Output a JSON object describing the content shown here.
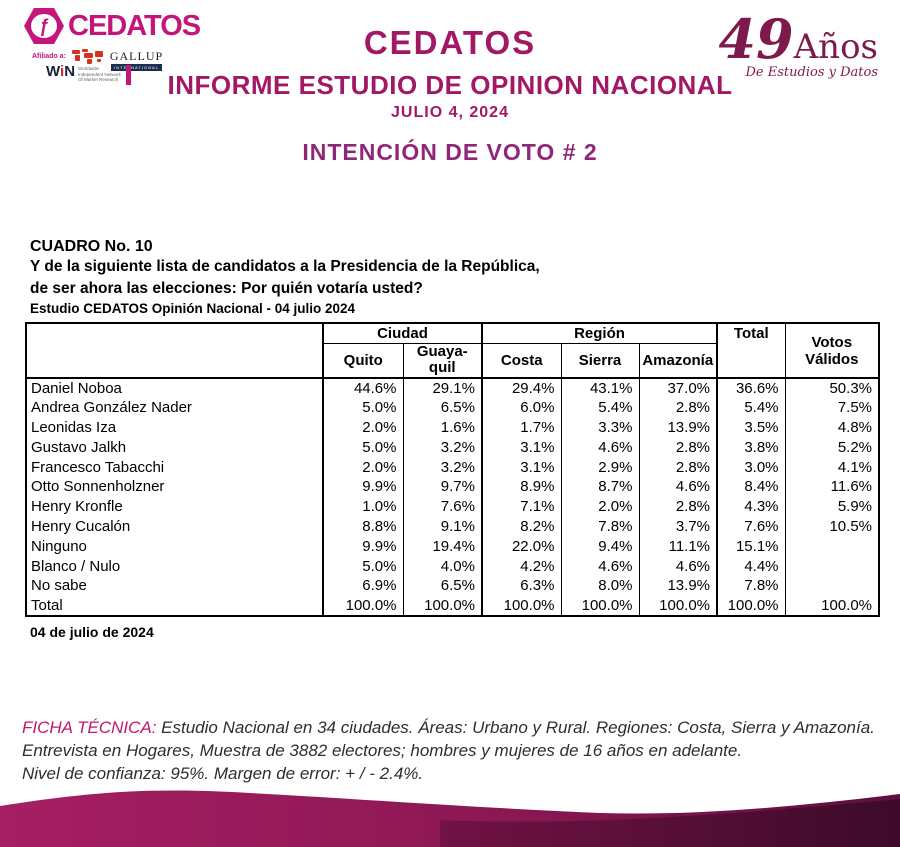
{
  "colors": {
    "brand_pink": "#C4157B",
    "heading_magenta": "#A21865",
    "heading_purple": "#8E2778",
    "maroon": "#7D1A4B",
    "ficha_pink": "#C4156B",
    "wave_left": "#A61E63",
    "wave_mid": "#8C1853",
    "wave_right": "#5C103E",
    "wave_dark_left": "#6E1243",
    "wave_dark_right": "#3A0A27"
  },
  "header": {
    "logo": {
      "brand": "CEDATOS",
      "glyph": "ƒ",
      "affiliation_label": "Afiliado a:",
      "gallup_label": "GALLUP",
      "gallup_sub": "INTERNATIONAL",
      "win_label_w": "W",
      "win_label_i": "i",
      "win_label_n": "N",
      "win_sub": "Worldwide\nIndependent Network\nOf Market Research"
    },
    "title": "CEDATOS",
    "subtitle": "INFORME ESTUDIO DE OPINION NACIONAL",
    "date": "JULIO 4, 2024",
    "section_title": "INTENCIÓN DE VOTO # 2",
    "anniversary": {
      "number": "49",
      "word": "Años",
      "tagline": "De Estudios y Datos"
    }
  },
  "cuadro": {
    "label": "CUADRO No. 10",
    "question_line1": "Y de la siguiente lista de candidatos a la Presidencia de la República,",
    "question_line2": "de ser ahora las elecciones: Por quién votaría usted?",
    "source": "Estudio CEDATOS Opinión Nacional - 04 julio 2024",
    "footer_date": "04 de julio de 2024"
  },
  "table": {
    "group_ciudad": "Ciudad",
    "group_region": "Región",
    "col_total": "Total",
    "col_votos": "Votos Válidos",
    "subcols": [
      "Quito",
      "Guaya-\nquil",
      "Costa",
      "Sierra",
      "Amazonía"
    ],
    "rows": [
      {
        "name": "Daniel Noboa",
        "quito": "44.6%",
        "guayaquil": "29.1%",
        "costa": "29.4%",
        "sierra": "43.1%",
        "amazonia": "37.0%",
        "total": "36.6%",
        "votos": "50.3%"
      },
      {
        "name": "Andrea González Nader",
        "quito": "5.0%",
        "guayaquil": "6.5%",
        "costa": "6.0%",
        "sierra": "5.4%",
        "amazonia": "2.8%",
        "total": "5.4%",
        "votos": "7.5%"
      },
      {
        "name": "Leonidas Iza",
        "quito": "2.0%",
        "guayaquil": "1.6%",
        "costa": "1.7%",
        "sierra": "3.3%",
        "amazonia": "13.9%",
        "total": "3.5%",
        "votos": "4.8%"
      },
      {
        "name": "Gustavo Jalkh",
        "quito": "5.0%",
        "guayaquil": "3.2%",
        "costa": "3.1%",
        "sierra": "4.6%",
        "amazonia": "2.8%",
        "total": "3.8%",
        "votos": "5.2%"
      },
      {
        "name": "Francesco Tabacchi",
        "quito": "2.0%",
        "guayaquil": "3.2%",
        "costa": "3.1%",
        "sierra": "2.9%",
        "amazonia": "2.8%",
        "total": "3.0%",
        "votos": "4.1%"
      },
      {
        "name": "Otto Sonnenholzner",
        "quito": "9.9%",
        "guayaquil": "9.7%",
        "costa": "8.9%",
        "sierra": "8.7%",
        "amazonia": "4.6%",
        "total": "8.4%",
        "votos": "11.6%"
      },
      {
        "name": "Henry Kronfle",
        "quito": "1.0%",
        "guayaquil": "7.6%",
        "costa": "7.1%",
        "sierra": "2.0%",
        "amazonia": "2.8%",
        "total": "4.3%",
        "votos": "5.9%"
      },
      {
        "name": "Henry Cucalón",
        "quito": "8.8%",
        "guayaquil": "9.1%",
        "costa": "8.2%",
        "sierra": "7.8%",
        "amazonia": "3.7%",
        "total": "7.6%",
        "votos": "10.5%"
      },
      {
        "name": "Ninguno",
        "quito": "9.9%",
        "guayaquil": "19.4%",
        "costa": "22.0%",
        "sierra": "9.4%",
        "amazonia": "11.1%",
        "total": "15.1%",
        "votos": ""
      },
      {
        "name": "Blanco / Nulo",
        "quito": "5.0%",
        "guayaquil": "4.0%",
        "costa": "4.2%",
        "sierra": "4.6%",
        "amazonia": "4.6%",
        "total": "4.4%",
        "votos": ""
      },
      {
        "name": "No sabe",
        "quito": "6.9%",
        "guayaquil": "6.5%",
        "costa": "6.3%",
        "sierra": "8.0%",
        "amazonia": "13.9%",
        "total": "7.8%",
        "votos": ""
      },
      {
        "name": "Total",
        "quito": "100.0%",
        "guayaquil": "100.0%",
        "costa": "100.0%",
        "sierra": "100.0%",
        "amazonia": "100.0%",
        "total": "100.0%",
        "votos": "100.0%"
      }
    ]
  },
  "ficha": {
    "label": "FICHA TÉCNICA:",
    "line1": " Estudio Nacional en 34 ciudades. Áreas: Urbano y Rural. Regiones: Costa, Sierra y Amazonía.",
    "line2": "Entrevista en Hogares, Muestra de 3882 electores; hombres y mujeres de 16 años en adelante.",
    "line3": "Nivel de confianza: 95%. Margen de error: + / - 2.4%."
  }
}
